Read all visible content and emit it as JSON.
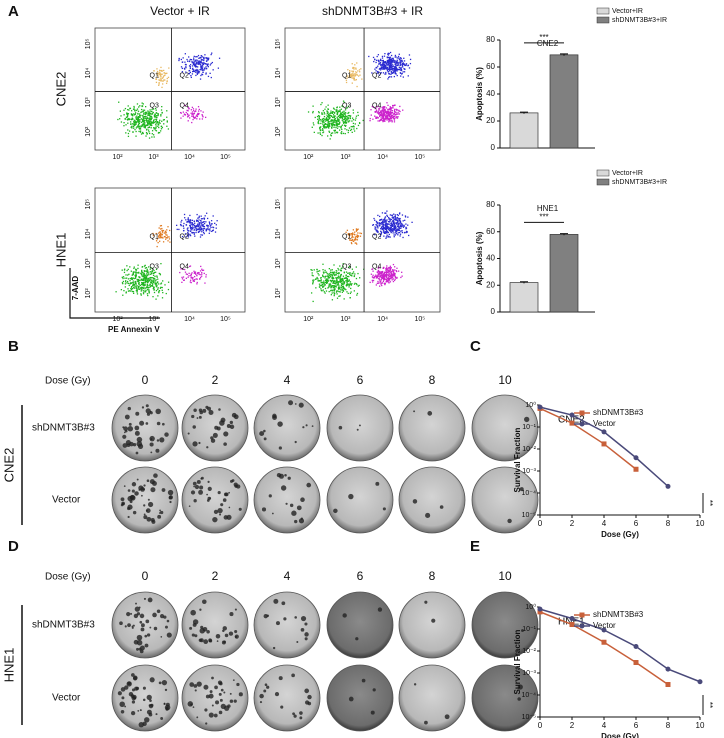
{
  "panel_labels": [
    "A",
    "B",
    "C",
    "D",
    "E"
  ],
  "flow": {
    "columns": [
      "Vector + IR",
      "shDNMT3B#3 + IR"
    ],
    "rows": [
      "CNE2",
      "HNE1"
    ],
    "quadrants": [
      "Q1",
      "Q2",
      "Q3",
      "Q4"
    ],
    "x_axis": "PE Annexin V",
    "y_axis": "7-AAD",
    "tick_labels": [
      "10²",
      "10³",
      "10⁴",
      "10⁵"
    ]
  },
  "colony": {
    "dose_label": "Dose (Gy)",
    "doses": [
      "0",
      "2",
      "4",
      "6",
      "8",
      "10"
    ],
    "rows": [
      "shDNMT3B#3",
      "Vector"
    ],
    "cell_lines": [
      "CNE2",
      "HNE1"
    ]
  },
  "chart_data": [
    {
      "type": "bar",
      "title": "CNE2",
      "ylabel": "Apoptosis (%)",
      "ylim": [
        0,
        80
      ],
      "yticks": [
        0,
        20,
        40,
        60,
        80
      ],
      "annotation": "***",
      "series": [
        {
          "name": "Vector+IR",
          "color": "#d9d9d9",
          "values": [
            26
          ],
          "errors": [
            0.6
          ]
        },
        {
          "name": "shDNMT3B#3+IR",
          "color": "#808080",
          "values": [
            69
          ],
          "errors": [
            0.7
          ]
        }
      ]
    },
    {
      "type": "bar",
      "title": "HNE1",
      "ylabel": "Apoptosis (%)",
      "ylim": [
        0,
        80
      ],
      "yticks": [
        0,
        20,
        40,
        60,
        80
      ],
      "annotation": "***",
      "series": [
        {
          "name": "Vector+IR",
          "color": "#d9d9d9",
          "values": [
            22
          ],
          "errors": [
            0.6
          ]
        },
        {
          "name": "shDNMT3B#3+IR",
          "color": "#808080",
          "values": [
            58
          ],
          "errors": [
            0.6
          ]
        }
      ]
    },
    {
      "type": "line",
      "title": "CNE2",
      "xlabel": "Dose (Gy)",
      "ylabel": "Survival Fraction",
      "log_y": true,
      "annotation": "**",
      "x": [
        0,
        2,
        4,
        6,
        8,
        10
      ],
      "xlim": [
        0,
        10
      ],
      "xticks": [
        0,
        2,
        4,
        6,
        8,
        10
      ],
      "ylim": [
        1e-05,
        1
      ],
      "yticks": [
        {
          "value": 1,
          "label": "10⁰"
        },
        {
          "value": 0.1,
          "label": "10⁻¹"
        },
        {
          "value": 0.01,
          "label": "10⁻²"
        },
        {
          "value": 0.001,
          "label": "10⁻³"
        },
        {
          "value": 0.0001,
          "label": "10⁻⁴"
        },
        {
          "value": 1e-05,
          "label": "10⁻⁵"
        }
      ],
      "series": [
        {
          "name": "shDNMT3B#3",
          "color": "#c8603a",
          "marker": "square",
          "values": [
            0.7,
            0.15,
            0.017,
            0.0012,
            null,
            null
          ]
        },
        {
          "name": "Vector",
          "color": "#4a4a7a",
          "marker": "circle",
          "values": [
            0.8,
            0.35,
            0.06,
            0.004,
            0.0002,
            null
          ]
        }
      ]
    },
    {
      "type": "line",
      "title": "HNE1",
      "xlabel": "Dose (Gy)",
      "ylabel": "Survival Fraction",
      "log_y": true,
      "annotation": "**",
      "x": [
        0,
        2,
        4,
        6,
        8,
        10
      ],
      "xlim": [
        0,
        10
      ],
      "xticks": [
        0,
        2,
        4,
        6,
        8,
        10
      ],
      "ylim": [
        1e-05,
        1
      ],
      "yticks": [
        {
          "value": 1,
          "label": "10⁰"
        },
        {
          "value": 0.1,
          "label": "10⁻¹"
        },
        {
          "value": 0.01,
          "label": "10⁻²"
        },
        {
          "value": 0.001,
          "label": "10⁻³"
        },
        {
          "value": 0.0001,
          "label": "10⁻⁴"
        },
        {
          "value": 1e-05,
          "label": "10⁻⁵"
        }
      ],
      "series": [
        {
          "name": "shDNMT3B#3",
          "color": "#c8603a",
          "marker": "square",
          "values": [
            0.6,
            0.16,
            0.025,
            0.003,
            0.0003,
            null
          ]
        },
        {
          "name": "Vector",
          "color": "#4a4a7a",
          "marker": "circle",
          "values": [
            0.8,
            0.3,
            0.09,
            0.016,
            0.0015,
            0.0004
          ]
        }
      ]
    }
  ]
}
